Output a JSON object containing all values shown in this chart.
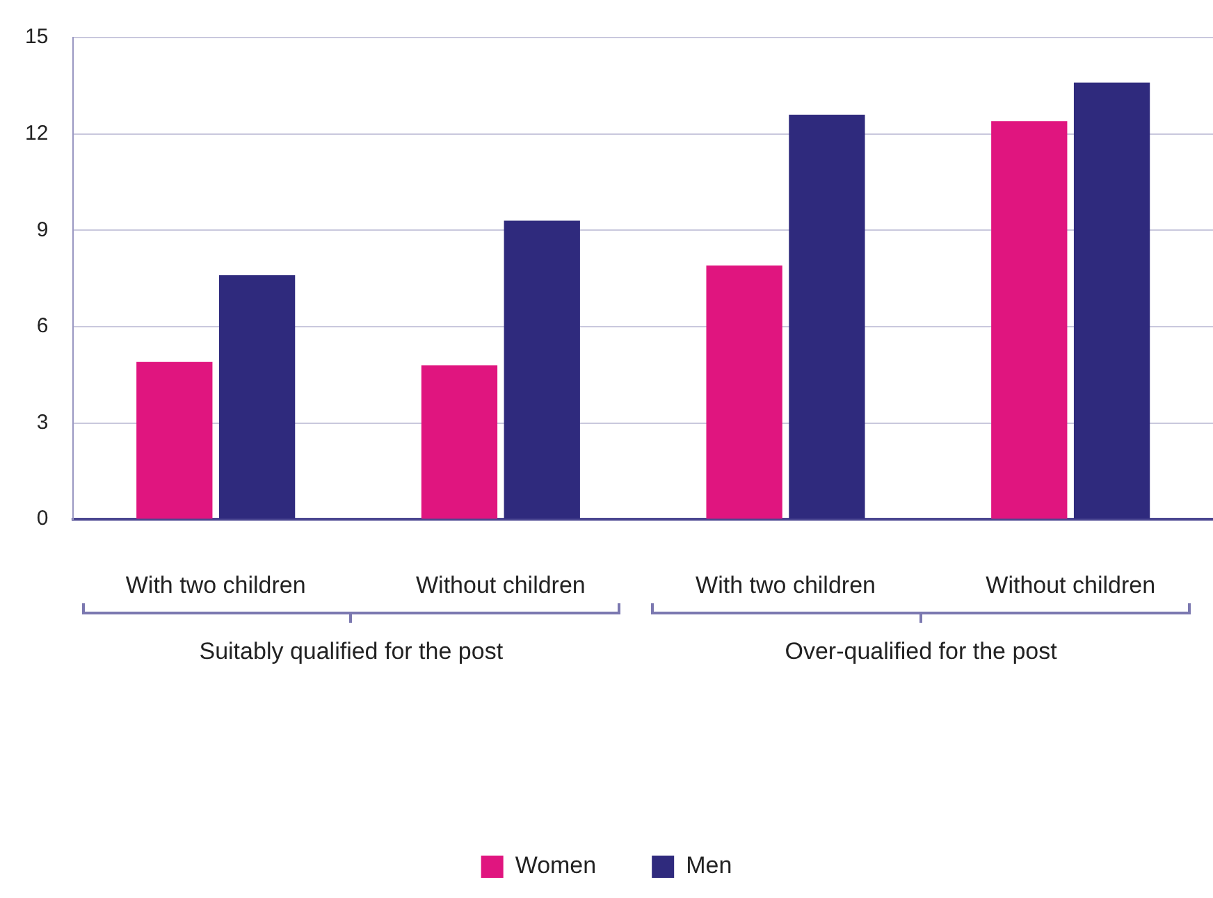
{
  "chart_data": {
    "type": "bar",
    "categories": [
      "With two children",
      "Without children",
      "With two children",
      "Without children"
    ],
    "series": [
      {
        "name": "Women",
        "color": "#e0157f",
        "values": [
          4.9,
          4.8,
          7.9,
          12.4
        ]
      },
      {
        "name": "Men",
        "color": "#2f2a7d",
        "values": [
          7.6,
          9.3,
          12.6,
          13.6
        ]
      }
    ],
    "annotations": [
      "Suitably qualified for the post",
      "Over-qualified for the post"
    ],
    "ylim": [
      0,
      15
    ],
    "yticks": [
      0,
      3,
      6,
      9,
      12,
      15
    ],
    "grid": "y",
    "legend": "bottom"
  }
}
